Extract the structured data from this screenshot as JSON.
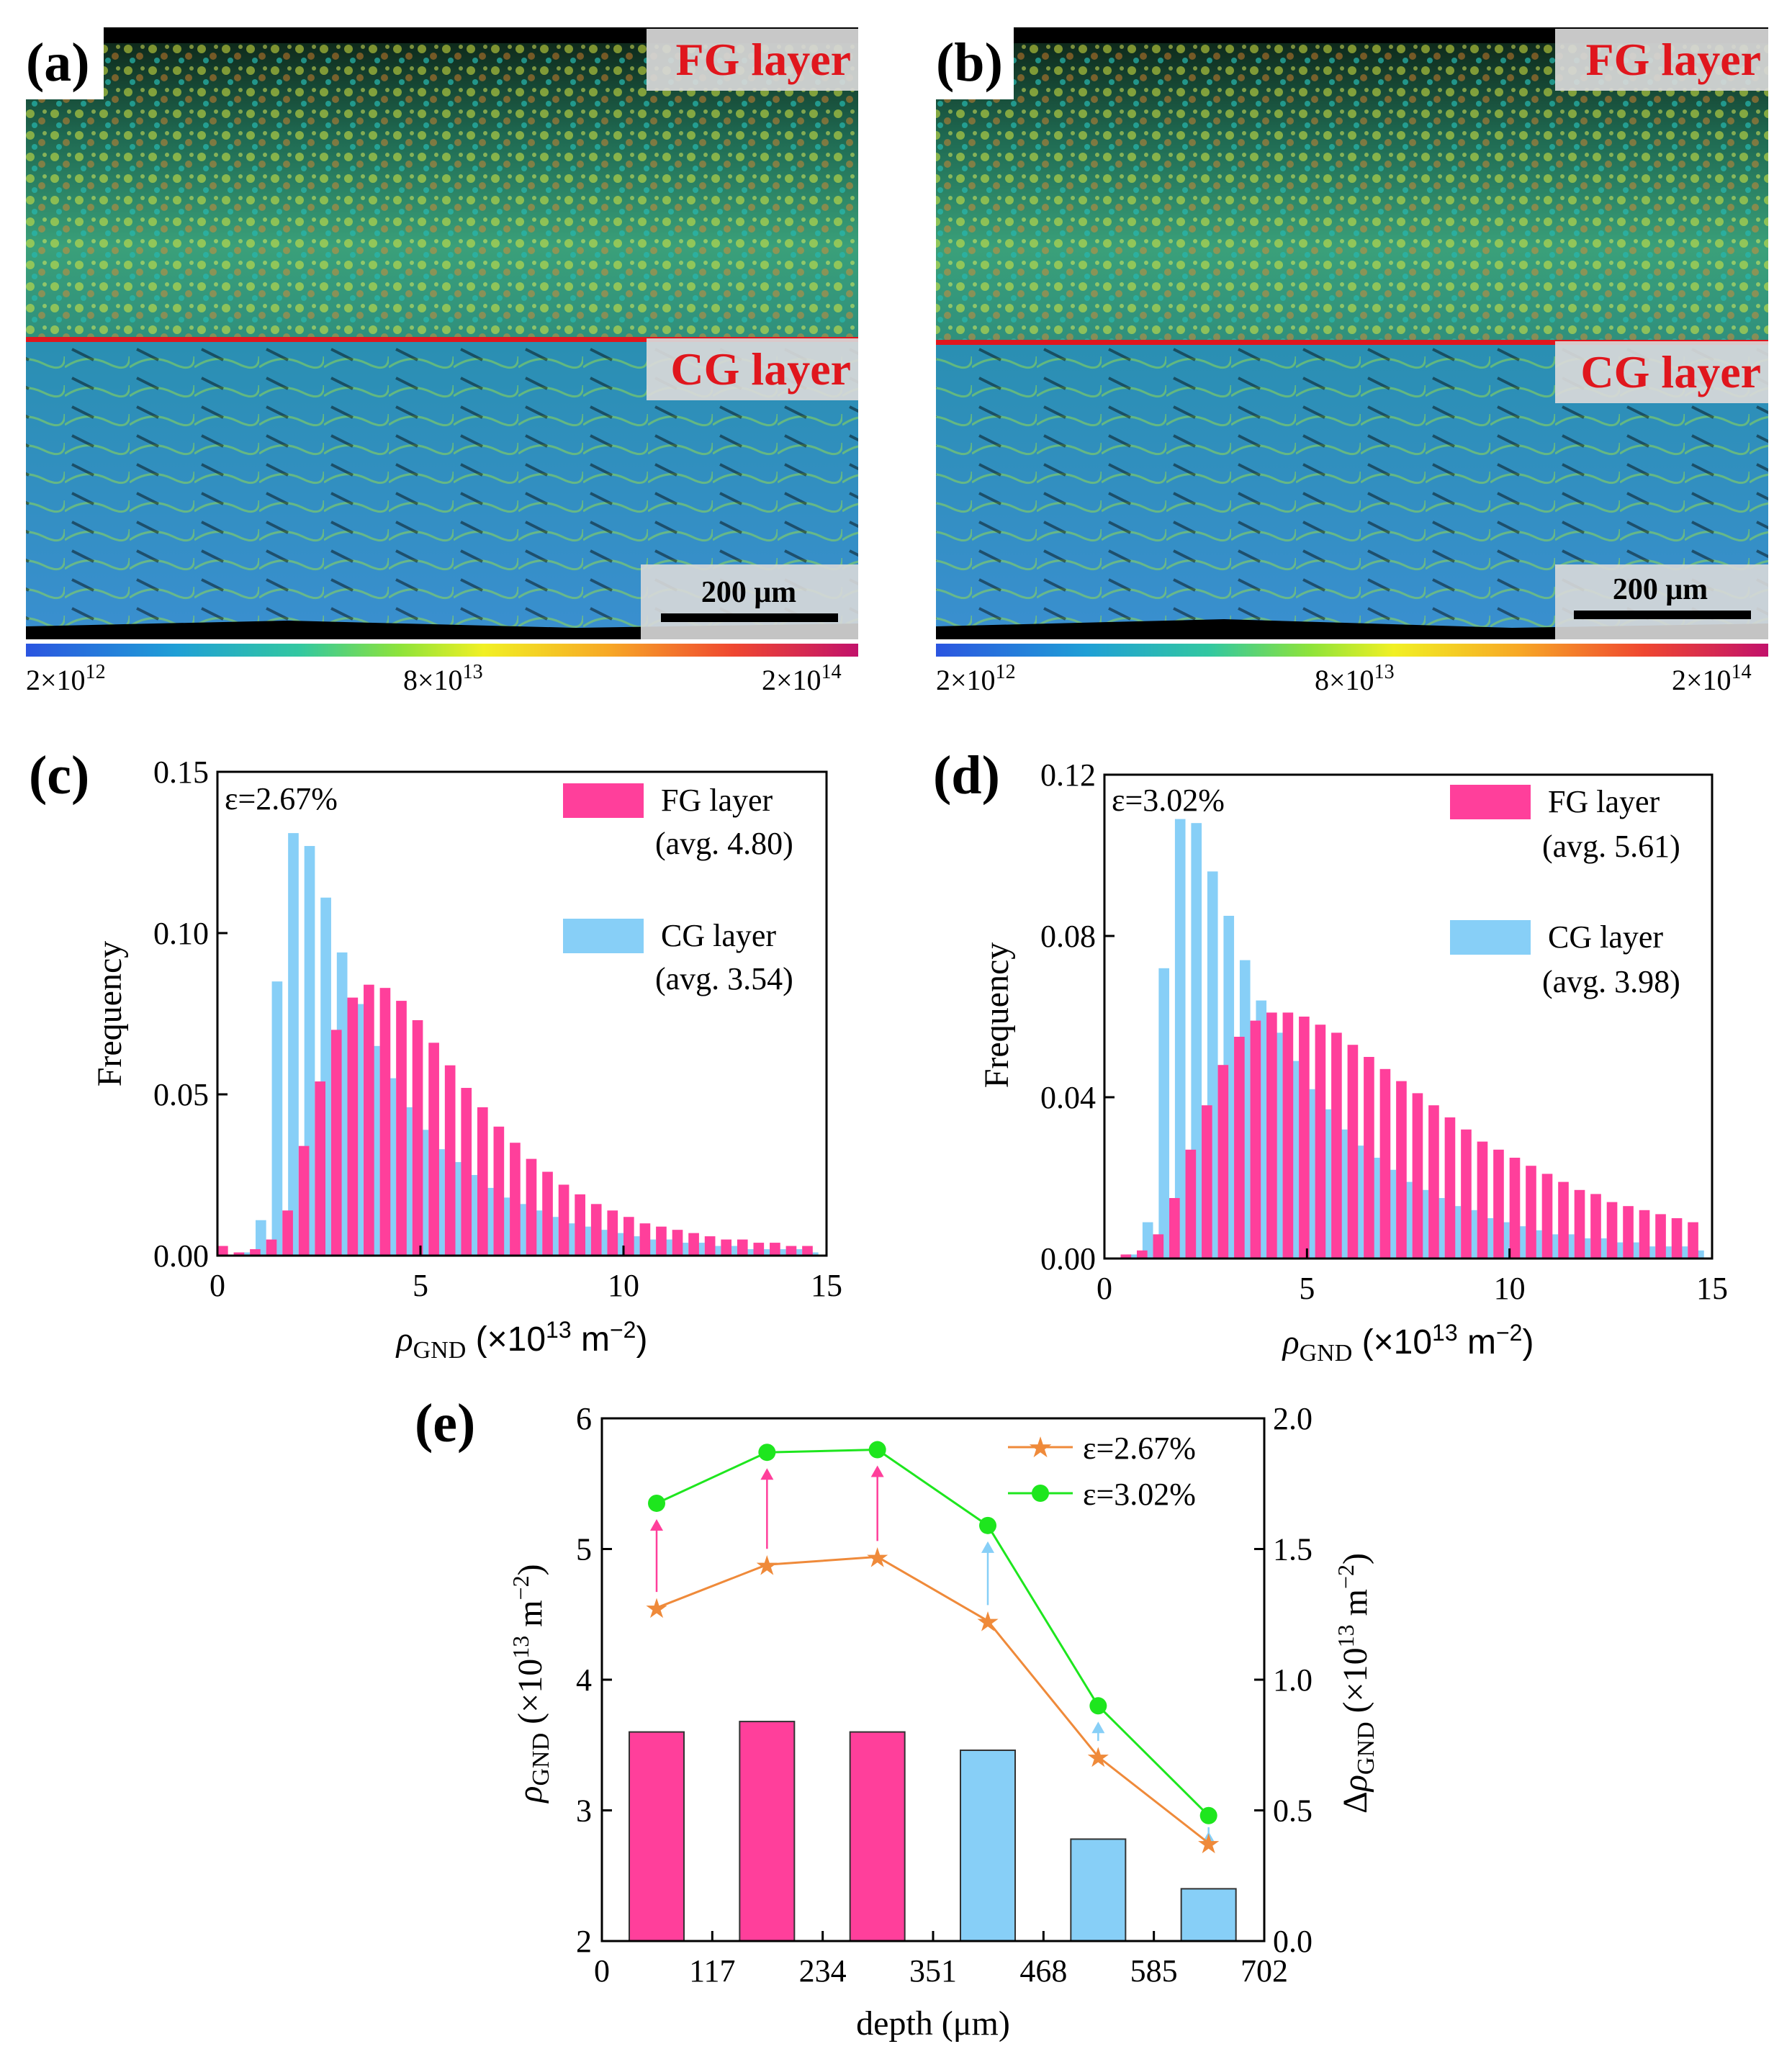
{
  "colors": {
    "fg": "#ff3f9b",
    "cg": "#87cff7",
    "orange": "#ef8a3a",
    "green": "#1ee61e",
    "red": "#e0161d",
    "map_background": "#000000"
  },
  "maps": [
    {
      "panel": "(a)",
      "fg_label": "FG layer",
      "cg_label": "CG layer",
      "scale_bar": "200 μm",
      "colorbar": {
        "min": "2×10",
        "min_exp": "12",
        "mid": "8×10",
        "mid_exp": "13",
        "max": "2×10",
        "max_exp": "14"
      }
    },
    {
      "panel": "(b)",
      "fg_label": "FG layer",
      "cg_label": "CG layer",
      "scale_bar": "200 μm",
      "colorbar": {
        "min": "2×10",
        "min_exp": "12",
        "mid": "8×10",
        "mid_exp": "13",
        "max": "2×10",
        "max_exp": "14"
      }
    }
  ],
  "chart_data": [
    {
      "panel": "(c)",
      "type": "bar",
      "strain_label": "ε=2.67%",
      "xlabel": "ρGND (×1013 m−2)",
      "ylabel": "Frequency",
      "xlim": [
        0,
        15
      ],
      "ylim": [
        0,
        0.15
      ],
      "xticks": [
        "0",
        "5",
        "10",
        "15"
      ],
      "yticks": [
        "0.00",
        "0.05",
        "0.10",
        "0.15"
      ],
      "x": [
        0,
        0.4,
        0.8,
        1.2,
        1.6,
        2.0,
        2.4,
        2.8,
        3.2,
        3.6,
        4.0,
        4.4,
        4.8,
        5.2,
        5.6,
        6.0,
        6.4,
        6.8,
        7.2,
        7.6,
        8.0,
        8.4,
        8.8,
        9.2,
        9.6,
        10.0,
        10.4,
        10.8,
        11.2,
        11.6,
        12.0,
        12.4,
        12.8,
        13.2,
        13.6,
        14.0,
        14.4
      ],
      "series": [
        {
          "name": "FG layer",
          "avg_label": "(avg. 4.80)",
          "values": [
            0.003,
            0.001,
            0.002,
            0.005,
            0.014,
            0.034,
            0.054,
            0.07,
            0.08,
            0.084,
            0.083,
            0.079,
            0.073,
            0.066,
            0.059,
            0.052,
            0.046,
            0.04,
            0.035,
            0.03,
            0.026,
            0.022,
            0.019,
            0.016,
            0.014,
            0.012,
            0.01,
            0.009,
            0.008,
            0.007,
            0.006,
            0.005,
            0.005,
            0.004,
            0.004,
            0.003,
            0.003
          ]
        },
        {
          "name": "CG layer",
          "avg_label": "(avg. 3.54)",
          "values": [
            0.0,
            0.001,
            0.011,
            0.085,
            0.131,
            0.127,
            0.111,
            0.094,
            0.078,
            0.065,
            0.055,
            0.046,
            0.039,
            0.033,
            0.029,
            0.025,
            0.021,
            0.018,
            0.016,
            0.014,
            0.012,
            0.01,
            0.009,
            0.008,
            0.007,
            0.006,
            0.005,
            0.005,
            0.004,
            0.004,
            0.003,
            0.003,
            0.002,
            0.002,
            0.002,
            0.002,
            0.001
          ]
        }
      ]
    },
    {
      "panel": "(d)",
      "type": "bar",
      "strain_label": "ε=3.02%",
      "xlabel": "ρGND (×1013 m−2)",
      "ylabel": "Frequency",
      "xlim": [
        0,
        15
      ],
      "ylim": [
        0,
        0.12
      ],
      "xticks": [
        "0",
        "5",
        "10",
        "15"
      ],
      "yticks": [
        "0.00",
        "0.04",
        "0.08",
        "0.12"
      ],
      "x": [
        0,
        0.4,
        0.8,
        1.2,
        1.6,
        2.0,
        2.4,
        2.8,
        3.2,
        3.6,
        4.0,
        4.4,
        4.8,
        5.2,
        5.6,
        6.0,
        6.4,
        6.8,
        7.2,
        7.6,
        8.0,
        8.4,
        8.8,
        9.2,
        9.6,
        10.0,
        10.4,
        10.8,
        11.2,
        11.6,
        12.0,
        12.4,
        12.8,
        13.2,
        13.6,
        14.0,
        14.4
      ],
      "series": [
        {
          "name": "FG layer",
          "avg_label": "(avg. 5.61)",
          "values": [
            0.0,
            0.001,
            0.002,
            0.006,
            0.015,
            0.027,
            0.038,
            0.048,
            0.055,
            0.059,
            0.061,
            0.061,
            0.06,
            0.058,
            0.056,
            0.053,
            0.05,
            0.047,
            0.044,
            0.041,
            0.038,
            0.035,
            0.032,
            0.029,
            0.027,
            0.025,
            0.023,
            0.021,
            0.019,
            0.017,
            0.016,
            0.014,
            0.013,
            0.012,
            0.011,
            0.01,
            0.009
          ]
        },
        {
          "name": "CG layer",
          "avg_label": "(avg. 3.98)",
          "values": [
            0.0,
            0.001,
            0.009,
            0.072,
            0.109,
            0.108,
            0.096,
            0.085,
            0.074,
            0.064,
            0.056,
            0.049,
            0.042,
            0.037,
            0.032,
            0.028,
            0.025,
            0.022,
            0.019,
            0.017,
            0.015,
            0.013,
            0.012,
            0.01,
            0.009,
            0.008,
            0.007,
            0.006,
            0.006,
            0.005,
            0.005,
            0.004,
            0.004,
            0.003,
            0.003,
            0.003,
            0.002
          ]
        }
      ]
    },
    {
      "panel": "(e)",
      "type": "line+bar",
      "xlabel": "depth (μm)",
      "ylabel_left": "ρGND (×1013 m−2)",
      "ylabel_right": "ΔρGND (×1013 m−2)",
      "xlim": [
        0,
        702
      ],
      "ylim_left": [
        2,
        6
      ],
      "ylim_right": [
        0,
        2
      ],
      "xticks": [
        "0",
        "117",
        "234",
        "351",
        "468",
        "585",
        "702"
      ],
      "yticks_left": [
        "2",
        "3",
        "4",
        "5",
        "6"
      ],
      "yticks_right": [
        "0.0",
        "0.5",
        "1.0",
        "1.5",
        "2.0"
      ],
      "x": [
        58,
        175,
        292,
        409,
        526,
        643
      ],
      "series": [
        {
          "name": "ε=2.67%",
          "axis": "left",
          "marker": "star",
          "values": [
            4.55,
            4.88,
            4.94,
            4.45,
            3.41,
            2.75
          ]
        },
        {
          "name": "ε=3.02%",
          "axis": "left",
          "marker": "circle",
          "values": [
            5.35,
            5.74,
            5.76,
            5.18,
            3.8,
            2.96
          ]
        },
        {
          "name": "Δρ",
          "axis": "right",
          "type": "bar",
          "layer": [
            "FG",
            "FG",
            "FG",
            "CG",
            "CG",
            "CG"
          ],
          "values": [
            0.8,
            0.84,
            0.8,
            0.73,
            0.39,
            0.2
          ]
        }
      ]
    }
  ]
}
